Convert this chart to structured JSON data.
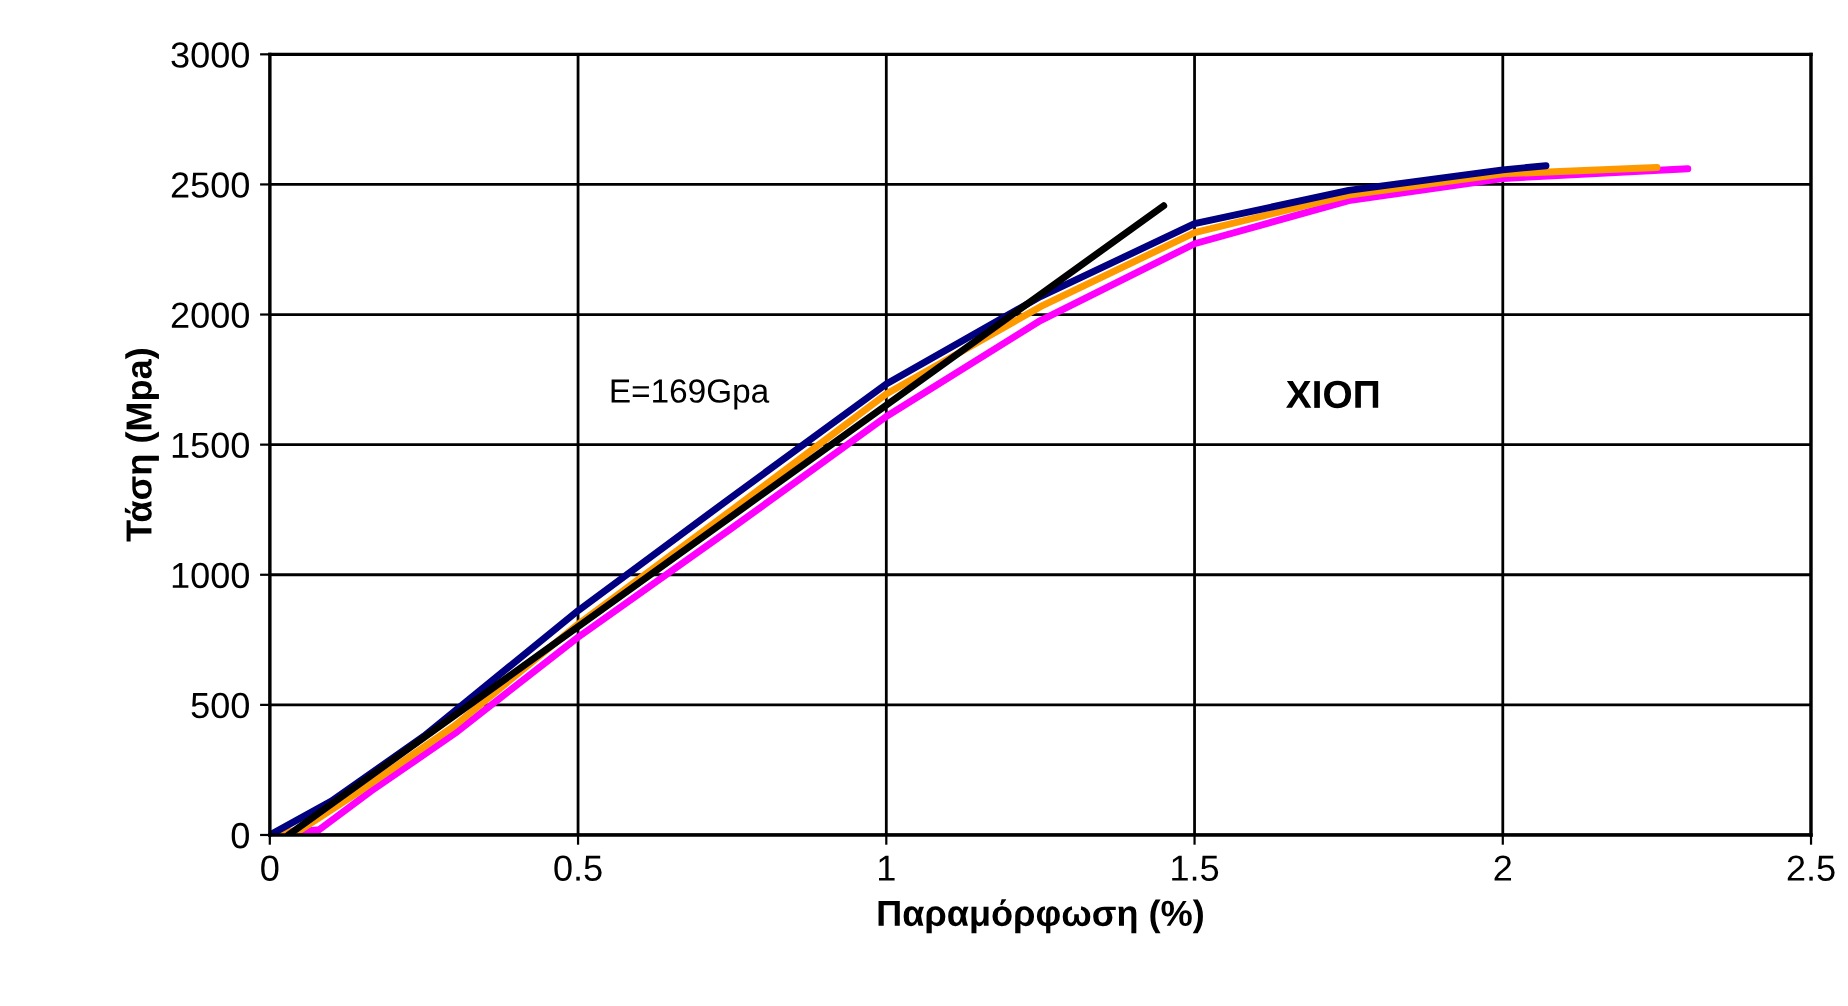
{
  "chart_data": {
    "type": "line",
    "xlabel": "Παραμόρφωση (%)",
    "ylabel": "Τάση (Mpa)",
    "xlim": [
      0,
      2.5
    ],
    "xticks": [
      0,
      0.5,
      1,
      1.5,
      2,
      2.5
    ],
    "ylim": [
      0,
      3000
    ],
    "yticks": [
      0,
      500,
      1000,
      1500,
      2000,
      2500,
      3000
    ],
    "grid": true,
    "legend": false,
    "marker": "none",
    "line_style": "solid",
    "series": [
      {
        "color": "#ff00ff",
        "x": [
          0,
          0.08,
          0.165,
          0.3,
          0.5,
          0.75,
          1.0,
          1.25,
          1.5,
          1.75,
          2.0,
          2.3
        ],
        "values": [
          0,
          20,
          170,
          390,
          760,
          1180,
          1608,
          1977,
          2272,
          2438,
          2523,
          2560
        ]
      },
      {
        "color": "#ff9900",
        "x": [
          0,
          0.05,
          0.147,
          0.3,
          0.5,
          0.75,
          1.0,
          1.25,
          1.5,
          1.75,
          2.0,
          2.25
        ],
        "values": [
          0,
          20,
          170,
          420,
          810,
          1250,
          1695,
          2030,
          2315,
          2459,
          2541,
          2565
        ]
      },
      {
        "color": "#000080",
        "x": [
          0,
          0.1,
          0.25,
          0.5,
          0.75,
          1.0,
          1.25,
          1.5,
          1.75,
          2.0,
          2.07
        ],
        "values": [
          0,
          130,
          380,
          862,
          1300,
          1733,
          2069,
          2349,
          2477,
          2556,
          2572
        ]
      },
      {
        "color": "#000000",
        "x": [
          0.03,
          1.45
        ],
        "values": [
          0,
          2418
        ]
      }
    ],
    "annotations": [
      "E=169Gpa",
      "ΧΙΟΠ"
    ]
  }
}
